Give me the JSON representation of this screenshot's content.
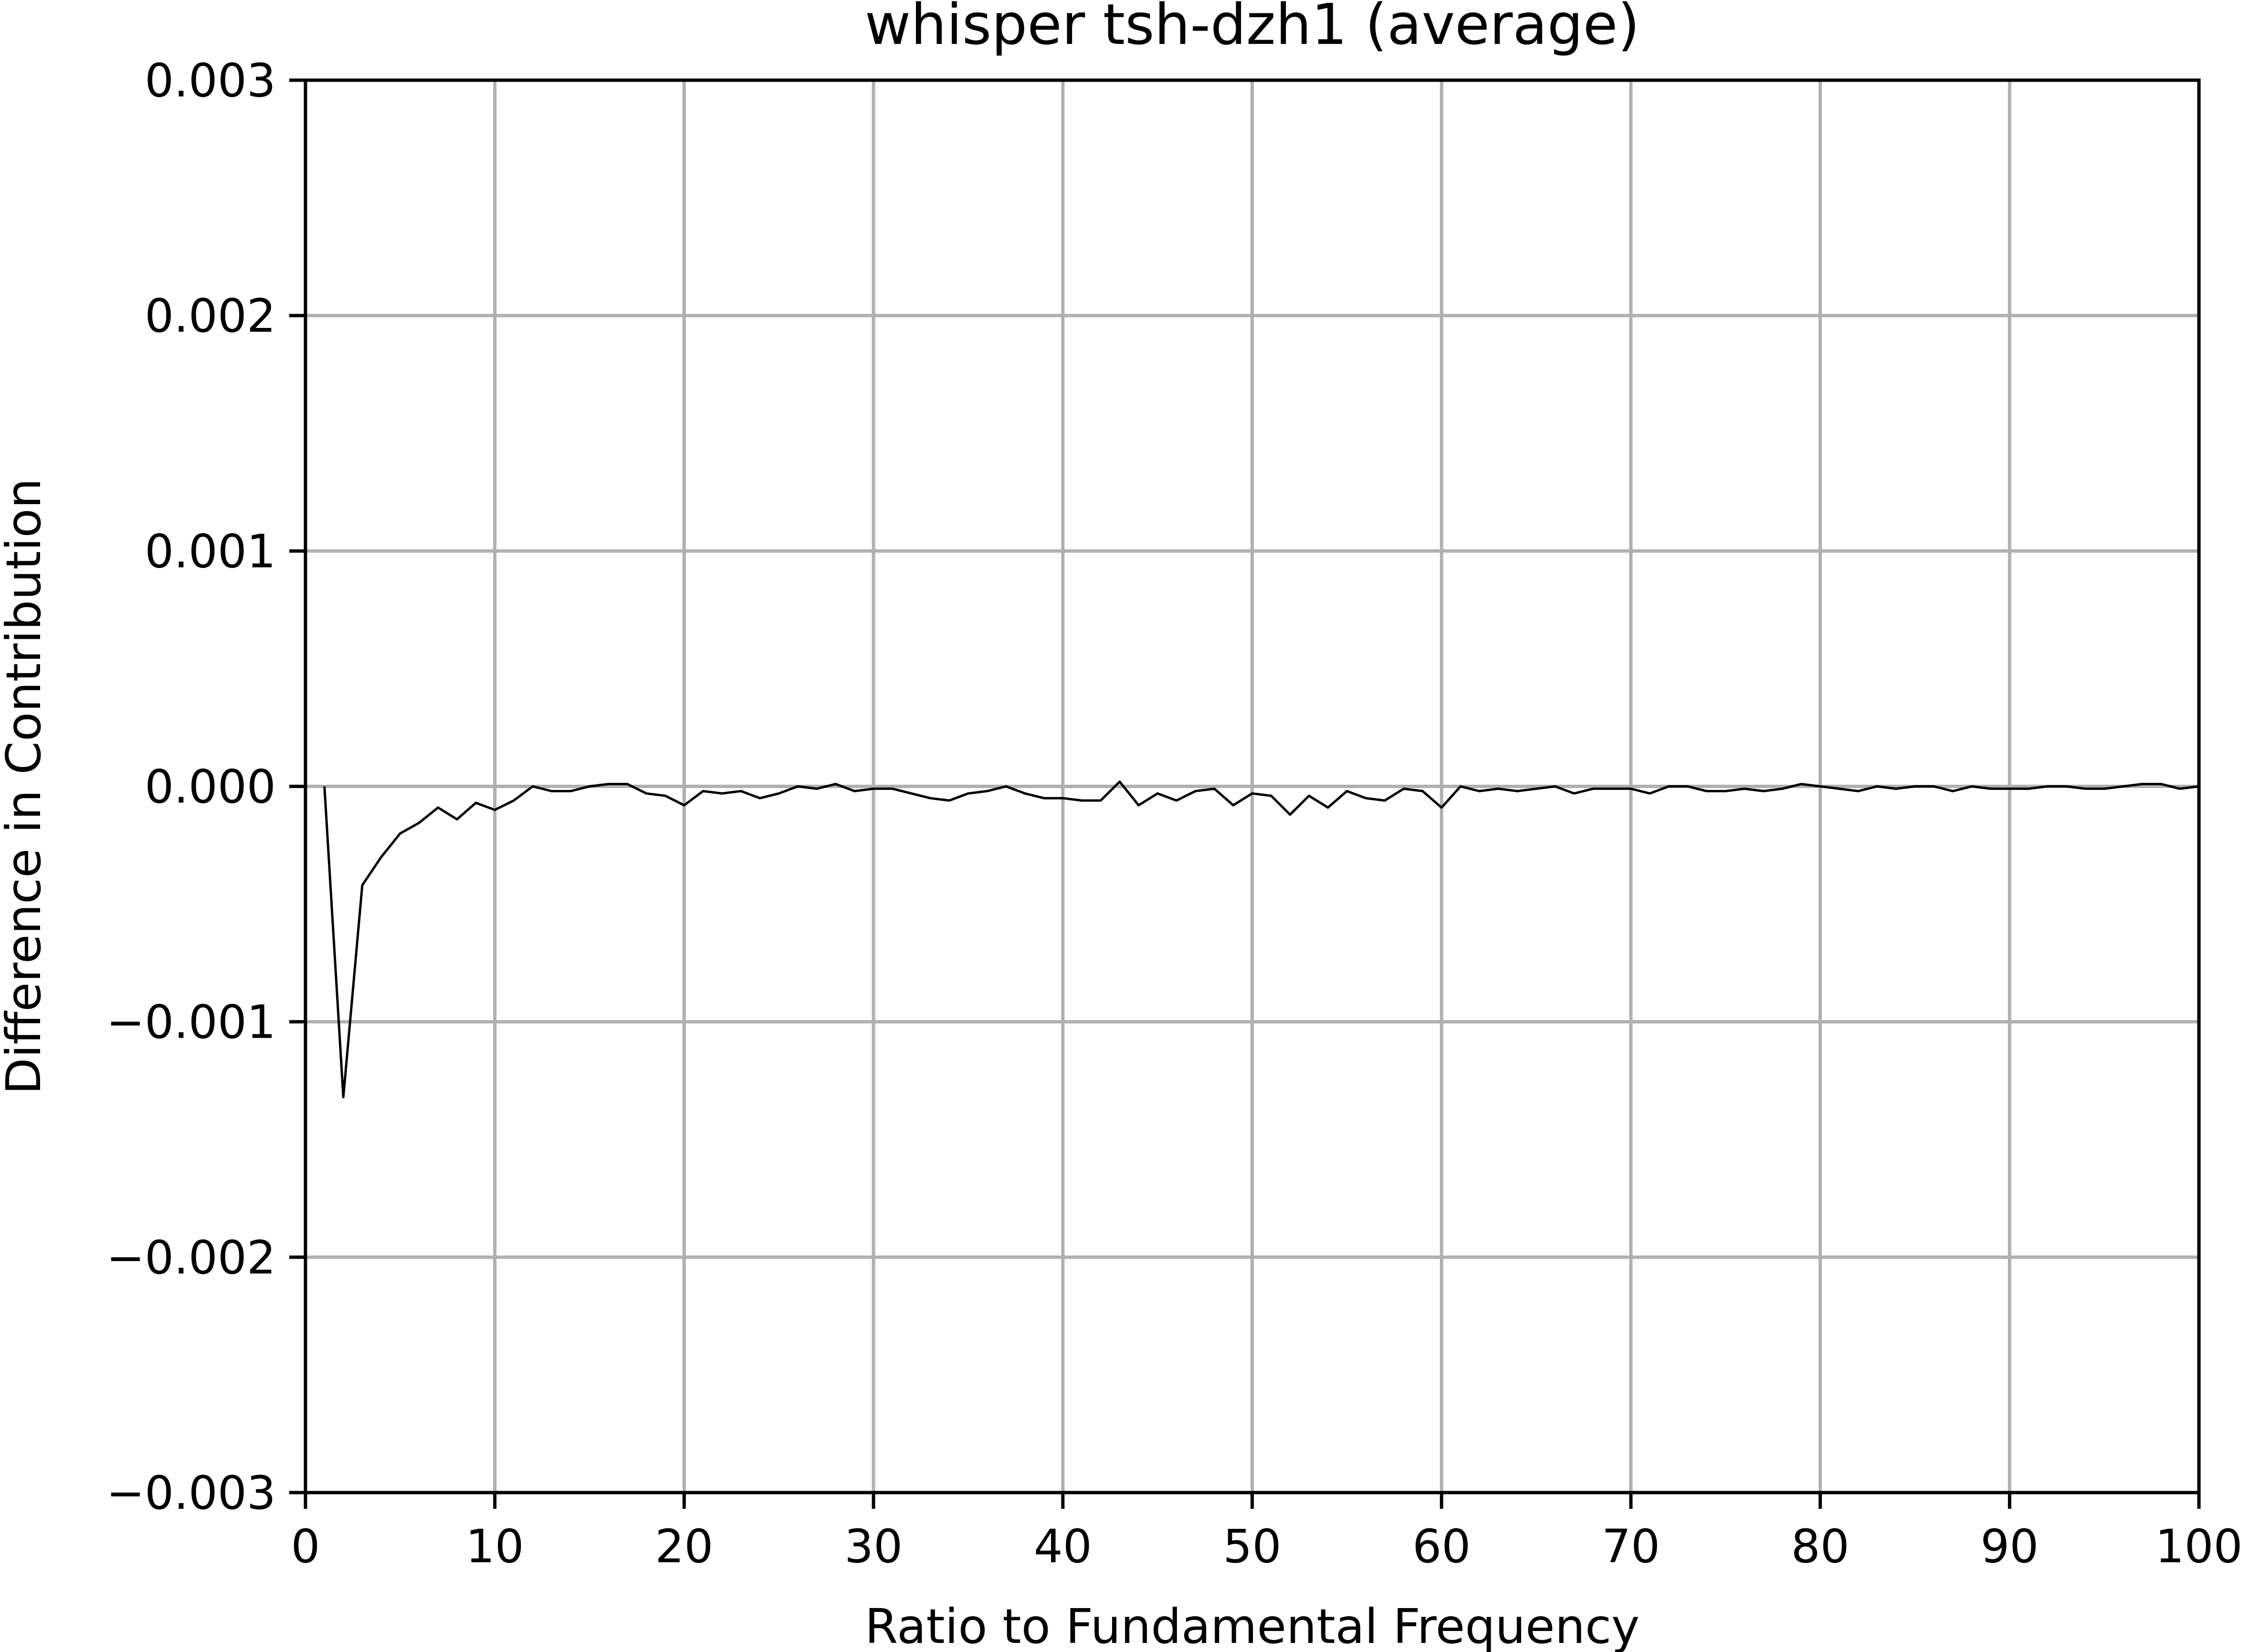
{
  "chart_data": {
    "type": "line",
    "title": "whisper tsh-dzh1 (average)",
    "xlabel": "Ratio to Fundamental Frequency",
    "ylabel": "Difference in Contribution",
    "xlim": [
      0,
      100
    ],
    "ylim": [
      -0.003,
      0.003
    ],
    "xticks": [
      0,
      10,
      20,
      30,
      40,
      50,
      60,
      70,
      80,
      90,
      100
    ],
    "xtick_labels": [
      "0",
      "10",
      "20",
      "30",
      "40",
      "50",
      "60",
      "70",
      "80",
      "90",
      "100"
    ],
    "yticks": [
      -0.003,
      -0.002,
      -0.001,
      0.0,
      0.001,
      0.002,
      0.003
    ],
    "ytick_labels": [
      "−0.003",
      "−0.002",
      "−0.001",
      "0.000",
      "0.001",
      "0.002",
      "0.003"
    ],
    "grid": true,
    "series": [
      {
        "color": "#000000",
        "x": [
          1,
          2,
          3,
          4,
          5,
          6,
          7,
          8,
          9,
          10,
          11,
          12,
          13,
          14,
          15,
          16,
          17,
          18,
          19,
          20,
          21,
          22,
          23,
          24,
          25,
          26,
          27,
          28,
          29,
          30,
          31,
          32,
          33,
          34,
          35,
          36,
          37,
          38,
          39,
          40,
          41,
          42,
          43,
          44,
          45,
          46,
          47,
          48,
          49,
          50,
          51,
          52,
          53,
          54,
          55,
          56,
          57,
          58,
          59,
          60,
          61,
          62,
          63,
          64,
          65,
          66,
          67,
          68,
          69,
          70,
          71,
          72,
          73,
          74,
          75,
          76,
          77,
          78,
          79,
          80,
          81,
          82,
          83,
          84,
          85,
          86,
          87,
          88,
          89,
          90,
          91,
          92,
          93,
          94,
          95,
          96,
          97,
          98,
          99,
          100
        ],
        "values": [
          0.0,
          -0.00132,
          -0.00042,
          -0.0003,
          -0.0002,
          -0.000155,
          -9e-05,
          -0.00014,
          -7e-05,
          -0.0001,
          -6e-05,
          0.0,
          -2e-05,
          -2e-05,
          0.0,
          1e-05,
          1e-05,
          -3e-05,
          -4e-05,
          -8e-05,
          -2e-05,
          -3e-05,
          -2e-05,
          -5e-05,
          -3e-05,
          0.0,
          -1e-05,
          1e-05,
          -2e-05,
          -1e-05,
          -1e-05,
          -3e-05,
          -5e-05,
          -6e-05,
          -3e-05,
          -2e-05,
          0.0,
          -3e-05,
          -5e-05,
          -5e-05,
          -6e-05,
          -6e-05,
          2e-05,
          -8e-05,
          -3e-05,
          -6e-05,
          -2e-05,
          -1e-05,
          -8e-05,
          -3e-05,
          -4e-05,
          -0.00012,
          -4e-05,
          -9e-05,
          -2e-05,
          -5e-05,
          -6e-05,
          -1e-05,
          -2e-05,
          -9e-05,
          0.0,
          -2e-05,
          -1e-05,
          -2e-05,
          -1e-05,
          0.0,
          -3e-05,
          -1e-05,
          -1e-05,
          -1e-05,
          -3e-05,
          0.0,
          0.0,
          -2e-05,
          -2e-05,
          -1e-05,
          -2e-05,
          -1e-05,
          1e-05,
          0.0,
          -1e-05,
          -2e-05,
          0.0,
          -1e-05,
          0.0,
          0.0,
          -2e-05,
          0.0,
          -1e-05,
          -1e-05,
          -1e-05,
          0.0,
          0.0,
          -1e-05,
          -1e-05,
          0.0,
          1e-05,
          1e-05,
          -1e-05,
          0.0
        ]
      }
    ]
  }
}
